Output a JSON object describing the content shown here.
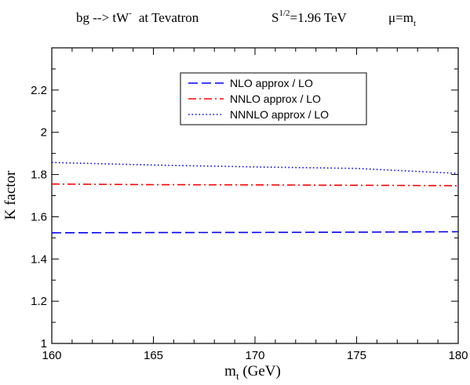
{
  "chart_data": {
    "type": "line",
    "title": {
      "process": "bg --> tW",
      "process_sup": "-",
      "collider": "at  Tevatron",
      "energy_base": "S",
      "energy_sup": "1/2",
      "energy_value": "=1.96 TeV",
      "scale_base": "μ=m",
      "scale_sub": "t"
    },
    "xlabel": {
      "base": "m",
      "sub": "t",
      "unit": " (GeV)"
    },
    "ylabel": "K  factor",
    "xlim": [
      160,
      180
    ],
    "ylim": [
      1.0,
      2.4
    ],
    "xticks": [
      160,
      165,
      170,
      175,
      180
    ],
    "xtick_labels": [
      "160",
      "165",
      "170",
      "175",
      "180"
    ],
    "yticks": [
      1.0,
      1.2,
      1.4,
      1.6,
      1.8,
      2.0,
      2.2
    ],
    "ytick_labels": [
      "1",
      "1.2",
      "1.4",
      "1.6",
      "1.8",
      "2",
      "2.2"
    ],
    "grid": false,
    "legend_position": "top-center",
    "series": [
      {
        "name": "NLO approx / LO",
        "color": "#0000ff",
        "style": "dashed",
        "x": [
          160,
          165,
          170,
          175,
          180
        ],
        "y": [
          1.524,
          1.525,
          1.526,
          1.527,
          1.529
        ]
      },
      {
        "name": "NNLO approx / LO",
        "color": "#ff0000",
        "style": "dashdot",
        "x": [
          160,
          165,
          170,
          175,
          180
        ],
        "y": [
          1.755,
          1.752,
          1.751,
          1.749,
          1.747
        ]
      },
      {
        "name": "NNNLO approx / LO",
        "color": "#0000ff",
        "style": "dotted",
        "x": [
          160,
          165,
          170,
          175,
          180
        ],
        "y": [
          1.857,
          1.845,
          1.836,
          1.829,
          1.805
        ]
      }
    ]
  }
}
